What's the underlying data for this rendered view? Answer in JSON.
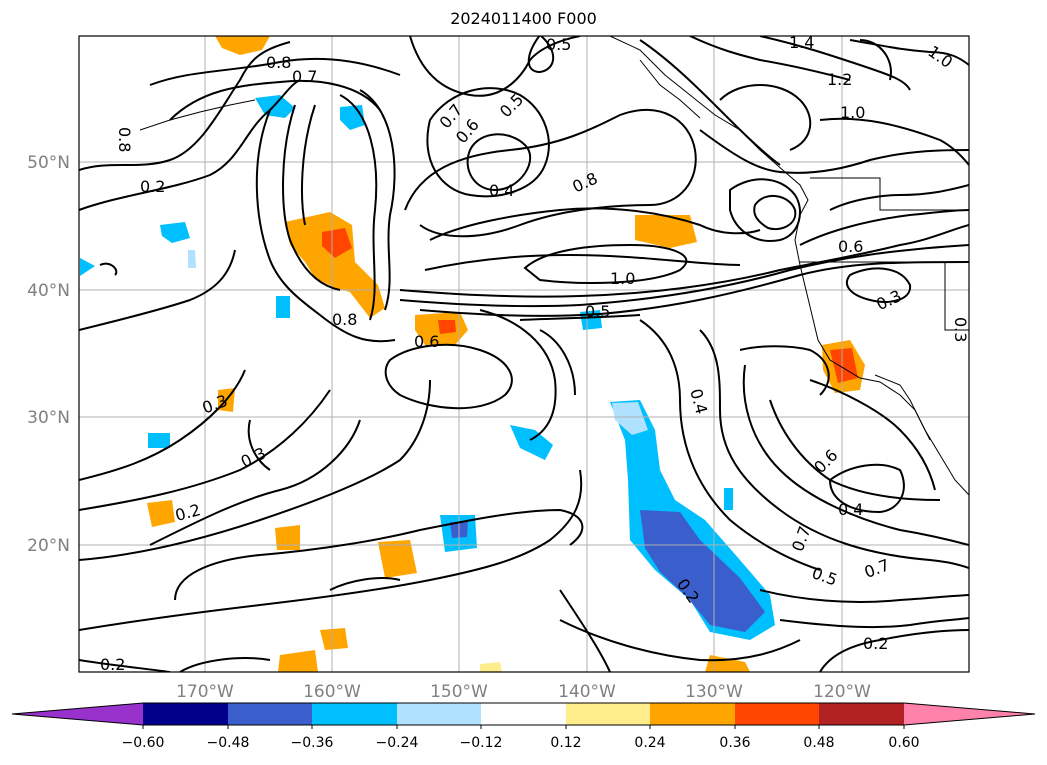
{
  "title": "2024011400 F000",
  "map": {
    "lon_labels": [
      "170°W",
      "160°W",
      "150°W",
      "140°W",
      "130°W",
      "120°W"
    ],
    "lat_labels": [
      "50°N",
      "40°N",
      "30°N",
      "20°N"
    ],
    "contour_labels": [
      "0.5",
      "1.4",
      "1.0",
      "0.8",
      "0.7",
      "1.2",
      "1.0",
      "0.7",
      "0.6",
      "0.5",
      "0.8",
      "0.2",
      "0.4",
      "0.8",
      "0.6",
      "1.0",
      "0.5",
      "0.3",
      "0.8",
      "0.6",
      "0.3",
      "0.4",
      "0.3",
      "0.6",
      "0.2",
      "0.4",
      "0.7",
      "0.5",
      "0.7",
      "0.3",
      "0.2",
      "0.2",
      "0.2"
    ]
  },
  "colorbar": {
    "colors": [
      "#9932cc",
      "#00008b",
      "#3a5fcd",
      "#00bfff",
      "#b0e2ff",
      "#ffffff",
      "#ffec8b",
      "#ffa500",
      "#ff4500",
      "#b22222",
      "#ff82ab"
    ],
    "labels": [
      "−0.60",
      "−0.48",
      "−0.36",
      "−0.24",
      "−0.12",
      "0.12",
      "0.24",
      "0.36",
      "0.48",
      "0.60"
    ]
  }
}
